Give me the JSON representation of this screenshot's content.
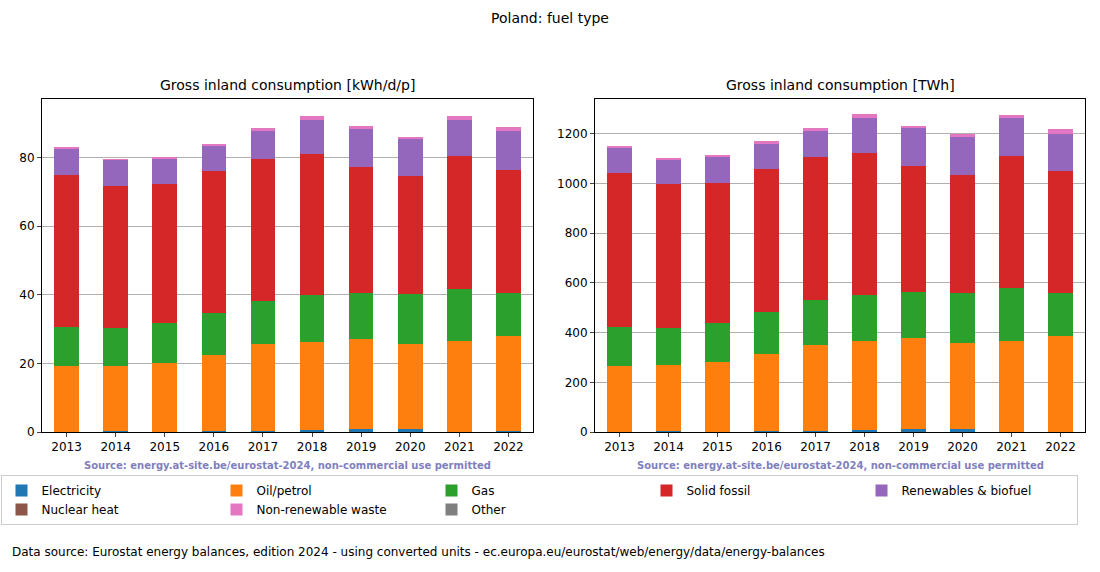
{
  "title": "Poland: fuel type",
  "annotations": [
    "Data source: Eurostat energy balances, edition 2024 - using converted units - ec.europa.eu/eurostat/web/energy/data/energy-balances"
  ],
  "chart_data": [
    {
      "type": "bar",
      "title": "Gross inland consumption [kWh/d/p]",
      "categories": [
        "2013",
        "2014",
        "2015",
        "2016",
        "2017",
        "2018",
        "2019",
        "2020",
        "2021",
        "2022"
      ],
      "stacked": true,
      "grid": true,
      "legend": "bottom",
      "ylim": [
        0,
        97
      ],
      "yticks": [
        0,
        20,
        40,
        60,
        80
      ],
      "annotations": [
        "Source: energy.at-site.be/eurostat-2024, non-commercial use permitted"
      ],
      "series": [
        {
          "name": "Electricity",
          "color": "#1f77b4",
          "values": [
            0.1,
            0.3,
            0.1,
            0.3,
            0.3,
            0.6,
            0.9,
            0.9,
            0.1,
            0.2
          ]
        },
        {
          "name": "Oil/petrol",
          "color": "#ff7f0e",
          "values": [
            19.2,
            19.0,
            20.1,
            22.2,
            25.2,
            25.7,
            26.2,
            24.8,
            26.4,
            27.8
          ]
        },
        {
          "name": "Gas",
          "color": "#2ca02c",
          "values": [
            11.2,
            11.0,
            11.6,
            12.3,
            12.8,
            13.7,
            13.4,
            14.5,
            15.2,
            12.5
          ]
        },
        {
          "name": "Solid fossil",
          "color": "#d62728",
          "values": [
            44.5,
            41.5,
            40.5,
            41.3,
            41.3,
            41.0,
            36.8,
            34.3,
            38.8,
            35.7
          ]
        },
        {
          "name": "Renewables & biofuel",
          "color": "#9467bd",
          "values": [
            7.3,
            7.5,
            7.5,
            7.4,
            8.2,
            10.0,
            10.9,
            10.8,
            10.5,
            11.6
          ]
        },
        {
          "name": "Nuclear heat",
          "color": "#8c564b",
          "values": [
            0,
            0,
            0,
            0,
            0,
            0,
            0,
            0,
            0,
            0
          ]
        },
        {
          "name": "Non-renewable waste",
          "color": "#e377c2",
          "values": [
            0.7,
            0.2,
            0.4,
            0.5,
            0.7,
            1.0,
            0.8,
            0.7,
            1.0,
            1.0
          ]
        },
        {
          "name": "Other",
          "color": "#7f7f7f",
          "values": [
            0,
            0,
            0,
            0,
            0,
            0,
            0,
            0,
            0,
            0
          ]
        }
      ]
    },
    {
      "type": "bar",
      "title": "Gross inland consumption [TWh]",
      "categories": [
        "2013",
        "2014",
        "2015",
        "2016",
        "2017",
        "2018",
        "2019",
        "2020",
        "2021",
        "2022"
      ],
      "stacked": true,
      "grid": true,
      "legend": "bottom",
      "ylim": [
        0,
        1340
      ],
      "yticks": [
        0,
        200,
        400,
        600,
        800,
        1000,
        1200
      ],
      "annotations": [
        "Source: energy.at-site.be/eurostat-2024, non-commercial use permitted"
      ],
      "series": [
        {
          "name": "Electricity",
          "color": "#1f77b4",
          "values": [
            2,
            4,
            1,
            4,
            4,
            8,
            13,
            12,
            1,
            2
          ]
        },
        {
          "name": "Oil/petrol",
          "color": "#ff7f0e",
          "values": [
            265,
            264,
            279,
            308,
            348,
            357,
            364,
            345,
            366,
            383
          ]
        },
        {
          "name": "Gas",
          "color": "#2ca02c",
          "values": [
            156,
            152,
            160,
            170,
            178,
            187,
            185,
            203,
            211,
            175
          ]
        },
        {
          "name": "Solid fossil",
          "color": "#d62728",
          "values": [
            620,
            577,
            560,
            575,
            578,
            572,
            510,
            476,
            534,
            490
          ]
        },
        {
          "name": "Renewables & biofuel",
          "color": "#9467bd",
          "values": [
            100,
            100,
            107,
            105,
            104,
            139,
            150,
            151,
            150,
            150
          ]
        },
        {
          "name": "Nuclear heat",
          "color": "#8c564b",
          "values": [
            0,
            0,
            0,
            0,
            0,
            0,
            0,
            0,
            0,
            0
          ]
        },
        {
          "name": "Non-renewable waste",
          "color": "#e377c2",
          "values": [
            7,
            6,
            8,
            8,
            13,
            15,
            11,
            13,
            13,
            20
          ]
        },
        {
          "name": "Other",
          "color": "#7f7f7f",
          "values": [
            0,
            0,
            0,
            0,
            0,
            0,
            0,
            0,
            0,
            0
          ]
        }
      ]
    }
  ]
}
